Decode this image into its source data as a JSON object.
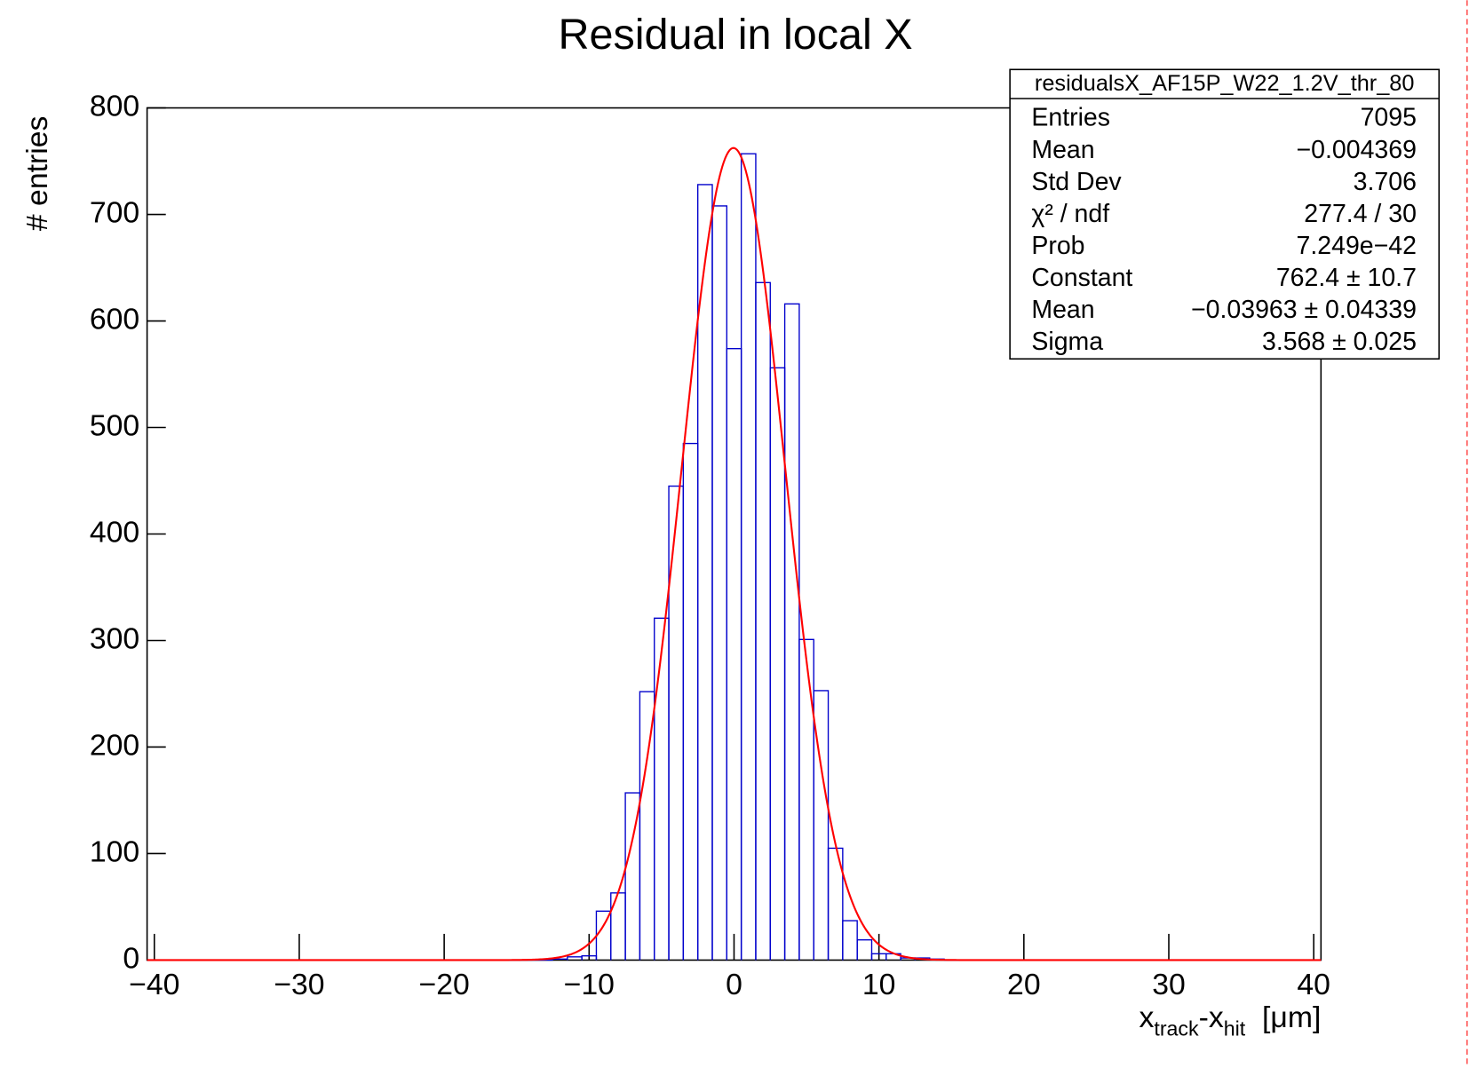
{
  "chart_data": {
    "type": "histogram",
    "title": "Residual in local X",
    "ylabel": "# entries",
    "xlabel": [
      "x",
      "track",
      "-x",
      "hit",
      "  [μm]"
    ],
    "bins": [
      -40.5,
      -39.5,
      -38.5,
      -37.5,
      -36.5,
      -35.5,
      -34.5,
      -33.5,
      -32.5,
      -31.5,
      -30.5,
      -29.5,
      -28.5,
      -27.5,
      -26.5,
      -25.5,
      -24.5,
      -23.5,
      -22.5,
      -21.5,
      -20.5,
      -19.5,
      -18.5,
      -17.5,
      -16.5,
      -15.5,
      -14.5,
      -13.5,
      -12.5,
      -11.5,
      -10.5,
      -9.5,
      -8.5,
      -7.5,
      -6.5,
      -5.5,
      -4.5,
      -3.5,
      -2.5,
      -1.5,
      -0.5,
      0.5,
      1.5,
      2.5,
      3.5,
      4.5,
      5.5,
      6.5,
      7.5,
      8.5,
      9.5,
      10.5,
      11.5,
      12.5,
      13.5,
      14.5,
      15.5,
      16.5,
      17.5,
      18.5,
      19.5,
      20.5,
      21.5,
      22.5,
      23.5,
      24.5,
      25.5,
      26.5,
      27.5,
      28.5,
      29.5,
      30.5,
      31.5,
      32.5,
      33.5,
      34.5,
      35.5,
      36.5,
      37.5,
      38.5,
      39.5,
      40.5
    ],
    "values": [
      0,
      0,
      0,
      0,
      0,
      0,
      0,
      0,
      0,
      0,
      0,
      0,
      0,
      0,
      0,
      0,
      0,
      0,
      0,
      0,
      0,
      0,
      0,
      0,
      0,
      0,
      0,
      0,
      1,
      3,
      4,
      46,
      63,
      157,
      252,
      321,
      445,
      485,
      728,
      708,
      574,
      757,
      636,
      556,
      616,
      301,
      253,
      105,
      37,
      19,
      6,
      6,
      2,
      2,
      1,
      0,
      0,
      0,
      0,
      0,
      0,
      0,
      0,
      0,
      0,
      0,
      0,
      0,
      0,
      0,
      0,
      0,
      0,
      0,
      0,
      0,
      0,
      0,
      0,
      0,
      0
    ],
    "color": "#0000cc",
    "fit": {
      "type": "gaus",
      "constant": 762.4,
      "mean": -0.03963,
      "sigma": 3.568,
      "color": "#ff0000"
    },
    "xlim": [
      -40.5,
      40.5
    ],
    "xticks": [
      {
        "value": -40,
        "label": "−40"
      },
      {
        "value": -30,
        "label": "−30"
      },
      {
        "value": -20,
        "label": "−20"
      },
      {
        "value": -10,
        "label": "−10"
      },
      0,
      10,
      20,
      30,
      40
    ],
    "ylim": [
      0,
      800
    ],
    "yticks": [
      0,
      100,
      200,
      300,
      400,
      500,
      600,
      700,
      800
    ],
    "stats": {
      "title": "residualsX_AF15P_W22_1.2V_thr_80",
      "rows": [
        [
          "Entries",
          "7095"
        ],
        [
          "Mean",
          "−0.004369"
        ],
        [
          "Std Dev",
          "3.706"
        ],
        [
          "χ² / ndf",
          "277.4 / 30"
        ],
        [
          "Prob",
          "7.249e−42"
        ],
        [
          "Constant",
          "762.4 ± 10.7"
        ],
        [
          "Mean",
          "−0.03963 ± 0.04339"
        ],
        [
          "Sigma",
          "3.568 ± 0.025"
        ]
      ]
    }
  }
}
